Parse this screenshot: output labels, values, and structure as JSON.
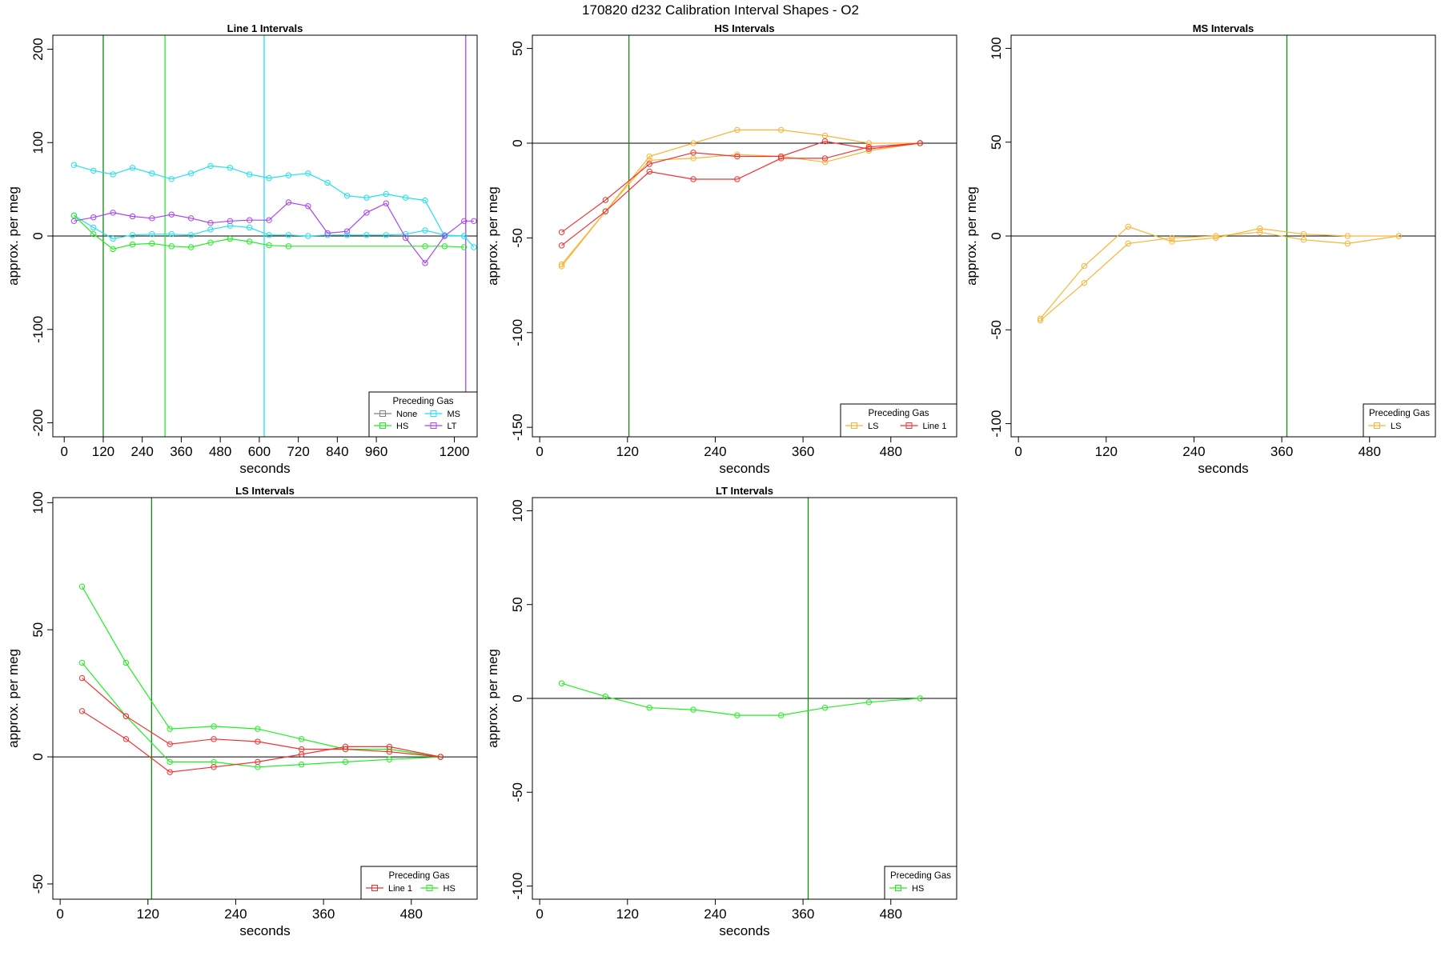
{
  "title": "170820   d232   Calibration Interval Shapes - O2",
  "colors": {
    "None": "#808080",
    "HS": "#22ee22",
    "MS": "#22e0ee",
    "LT": "#aa44ee",
    "LS": "#f7b538",
    "Line 1": "#ee3333",
    "vline": "#118811"
  },
  "chart_data": [
    {
      "type": "line",
      "title": "Line 1 Intervals",
      "xlabel": "seconds",
      "ylabel": "approx. per meg",
      "xlim": [
        -35,
        1270
      ],
      "ylim": [
        -215,
        215
      ],
      "xticks": [
        0,
        120,
        240,
        360,
        480,
        600,
        720,
        840,
        960,
        1200
      ],
      "yticks": [
        -200,
        -100,
        0,
        100,
        200
      ],
      "hline": 0,
      "vlines": [
        {
          "x": 120,
          "color": "vline"
        },
        {
          "x": 310,
          "color": "HS"
        },
        {
          "x": 615,
          "color": "MS"
        },
        {
          "x": 1235,
          "color": "LT"
        }
      ],
      "legend": {
        "title": "Preceding Gas",
        "entries": [
          "None",
          "MS",
          "HS",
          "LT"
        ],
        "columns": 2
      },
      "series": [
        {
          "name": "MS",
          "color": "MS",
          "x": [
            30,
            90,
            150,
            210,
            270,
            330,
            390,
            450,
            510,
            570,
            630,
            690,
            750,
            810,
            870,
            930,
            990,
            1050,
            1110,
            1170,
            1230
          ],
          "y": [
            76,
            70,
            66,
            73,
            67,
            61,
            67,
            75,
            73,
            66,
            62,
            65,
            67,
            57,
            43,
            41,
            45,
            41,
            38,
            0,
            0
          ]
        },
        {
          "name": "MS",
          "color": "MS",
          "x": [
            30,
            90,
            150,
            210,
            270,
            330,
            390,
            450,
            510,
            570,
            630,
            690,
            750,
            810,
            870,
            930,
            990,
            1050,
            1110,
            1170,
            1230,
            1260
          ],
          "y": [
            22,
            9,
            -3,
            1,
            2,
            2,
            1,
            7,
            11,
            9,
            1,
            1,
            0,
            1,
            1,
            1,
            1,
            2,
            6,
            1,
            0,
            -12
          ]
        },
        {
          "name": "LT",
          "color": "LT",
          "x": [
            30,
            90,
            150,
            210,
            270,
            330,
            390,
            450,
            510,
            570,
            630,
            690,
            750,
            810,
            870,
            930,
            990,
            1050,
            1110,
            1170,
            1230,
            1260
          ],
          "y": [
            16,
            20,
            25,
            21,
            19,
            23,
            19,
            14,
            16,
            17,
            17,
            36,
            32,
            3,
            5,
            25,
            35,
            -2,
            -29,
            0,
            16,
            16
          ]
        },
        {
          "name": "HS",
          "color": "HS",
          "x": [
            30,
            90,
            150,
            210,
            270,
            330,
            390,
            450,
            510,
            570,
            630,
            690,
            1110,
            1170,
            1230
          ],
          "y": [
            22,
            2,
            -14,
            -9,
            -8,
            -11,
            -12,
            -7,
            -3,
            -6,
            -10,
            -11,
            -11,
            -11,
            -12
          ]
        }
      ]
    },
    {
      "type": "line",
      "title": "HS Intervals",
      "xlabel": "seconds",
      "ylabel": "approx. per meg",
      "xlim": [
        -10,
        570
      ],
      "ylim": [
        -155,
        57
      ],
      "xticks": [
        0,
        120,
        240,
        360,
        480
      ],
      "yticks": [
        -150,
        -100,
        -50,
        0,
        50
      ],
      "hline": 0,
      "vlines": [
        {
          "x": 122,
          "color": "vline"
        }
      ],
      "legend": {
        "title": "Preceding Gas",
        "entries": [
          "LS",
          "Line 1"
        ],
        "columns": 2
      },
      "series": [
        {
          "name": "LS",
          "color": "LS",
          "x": [
            30,
            90,
            150,
            210,
            270,
            330,
            390,
            450,
            520
          ],
          "y": [
            -64,
            -36,
            -7,
            0,
            7,
            7,
            4,
            0,
            0
          ]
        },
        {
          "name": "LS",
          "color": "LS",
          "x": [
            30,
            90,
            150,
            210,
            270,
            330,
            390,
            450,
            520
          ],
          "y": [
            -65,
            -36,
            -9,
            -8,
            -6,
            -7,
            -10,
            -4,
            0
          ]
        },
        {
          "name": "Line 1",
          "color": "Line 1",
          "x": [
            30,
            90,
            150,
            210,
            270,
            330,
            390,
            450,
            520
          ],
          "y": [
            -47,
            -30,
            -11,
            -5,
            -7,
            -7,
            1,
            -3,
            0
          ]
        },
        {
          "name": "Line 1",
          "color": "Line 1",
          "x": [
            30,
            90,
            150,
            210,
            270,
            330,
            390,
            450,
            520
          ],
          "y": [
            -54,
            -36,
            -15,
            -19,
            -19,
            -8,
            -8,
            -2,
            0
          ]
        }
      ]
    },
    {
      "type": "line",
      "title": "MS Intervals",
      "xlabel": "seconds",
      "ylabel": "approx. per meg",
      "xlim": [
        -10,
        570
      ],
      "ylim": [
        -107,
        107
      ],
      "xticks": [
        0,
        120,
        240,
        360,
        480
      ],
      "yticks": [
        -100,
        -50,
        0,
        50,
        100
      ],
      "hline": 0,
      "vlines": [
        {
          "x": 367,
          "color": "vline"
        }
      ],
      "legend": {
        "title": "Preceding Gas",
        "entries": [
          "LS"
        ],
        "columns": 1
      },
      "series": [
        {
          "name": "LS",
          "color": "LS",
          "x": [
            30,
            90,
            150,
            210,
            270,
            330,
            390,
            450,
            520
          ],
          "y": [
            -44,
            -16,
            5,
            -3,
            -1,
            4,
            1,
            0,
            0
          ]
        },
        {
          "name": "LS",
          "color": "LS",
          "x": [
            30,
            90,
            150,
            210,
            270,
            330,
            390,
            450,
            520
          ],
          "y": [
            -45,
            -25,
            -4,
            -1,
            0,
            2,
            -2,
            -4,
            0
          ]
        }
      ]
    },
    {
      "type": "line",
      "title": "LS Intervals",
      "xlabel": "seconds",
      "ylabel": "approx. per meg",
      "xlim": [
        -10,
        570
      ],
      "ylim": [
        -56,
        102
      ],
      "xticks": [
        0,
        120,
        240,
        360,
        480
      ],
      "yticks": [
        -50,
        0,
        50,
        100
      ],
      "hline": 0,
      "vlines": [
        {
          "x": 125,
          "color": "vline"
        }
      ],
      "legend": {
        "title": "Preceding Gas",
        "entries": [
          "Line 1",
          "HS"
        ],
        "columns": 2
      },
      "series": [
        {
          "name": "HS",
          "color": "HS",
          "x": [
            30,
            90,
            150,
            210,
            270,
            330,
            390,
            450,
            520
          ],
          "y": [
            67,
            37,
            11,
            12,
            11,
            7,
            3,
            3,
            0
          ]
        },
        {
          "name": "HS",
          "color": "HS",
          "x": [
            30,
            90,
            150,
            210,
            270,
            330,
            390,
            450,
            520
          ],
          "y": [
            37,
            16,
            -2,
            -2,
            -4,
            -3,
            -2,
            -1,
            0
          ]
        },
        {
          "name": "Line 1",
          "color": "Line 1",
          "x": [
            30,
            90,
            150,
            210,
            270,
            330,
            390,
            450,
            520
          ],
          "y": [
            31,
            16,
            5,
            7,
            6,
            3,
            3,
            2,
            0
          ]
        },
        {
          "name": "Line 1",
          "color": "Line 1",
          "x": [
            30,
            90,
            150,
            210,
            270,
            330,
            390,
            450,
            520
          ],
          "y": [
            18,
            7,
            -6,
            -4,
            -2,
            1,
            4,
            4,
            0
          ]
        }
      ]
    },
    {
      "type": "line",
      "title": "LT Intervals",
      "xlabel": "seconds",
      "ylabel": "approx. per meg",
      "xlim": [
        -10,
        570
      ],
      "ylim": [
        -107,
        107
      ],
      "xticks": [
        0,
        120,
        240,
        360,
        480
      ],
      "yticks": [
        -100,
        -50,
        0,
        50,
        100
      ],
      "hline": 0,
      "vlines": [
        {
          "x": 367,
          "color": "vline"
        }
      ],
      "legend": {
        "title": "Preceding Gas",
        "entries": [
          "HS"
        ],
        "columns": 1
      },
      "series": [
        {
          "name": "HS",
          "color": "HS",
          "x": [
            30,
            90,
            150,
            210,
            270,
            330,
            390,
            450,
            520
          ],
          "y": [
            8,
            1,
            -5,
            -6,
            -9,
            -9,
            -5,
            -2,
            0
          ]
        }
      ]
    }
  ]
}
